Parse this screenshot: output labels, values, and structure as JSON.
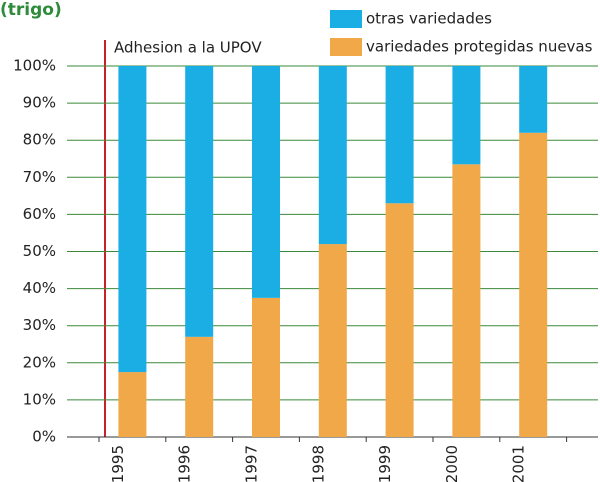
{
  "chart_data": {
    "type": "stacked_bar",
    "title": "(trigo)",
    "annotation": "Adhesion a la UPOV",
    "categories": [
      "1995",
      "1996",
      "1997",
      "1998",
      "1999",
      "2000",
      "2001"
    ],
    "series": [
      {
        "name": "variedades protegidas nuevas",
        "color": "#f0a848",
        "values": [
          17.5,
          27,
          37.5,
          52,
          63,
          73.5,
          82
        ]
      },
      {
        "name": "otras variedades",
        "color": "#1aaee5",
        "values": [
          82.5,
          73,
          62.5,
          48,
          37,
          26.5,
          18
        ]
      }
    ],
    "ylim": [
      0,
      100
    ],
    "yticks": [
      {
        "value": 0,
        "label": "0%"
      },
      {
        "value": 10,
        "label": "10%"
      },
      {
        "value": 20,
        "label": "20%"
      },
      {
        "value": 30,
        "label": "30%"
      },
      {
        "value": 40,
        "label": "40%"
      },
      {
        "value": 50,
        "label": "50%"
      },
      {
        "value": 60,
        "label": "60%"
      },
      {
        "value": 70,
        "label": "70%"
      },
      {
        "value": 80,
        "label": "80%"
      },
      {
        "value": 90,
        "label": "90%"
      },
      {
        "value": 100,
        "label": "100%"
      }
    ],
    "grid": true
  }
}
